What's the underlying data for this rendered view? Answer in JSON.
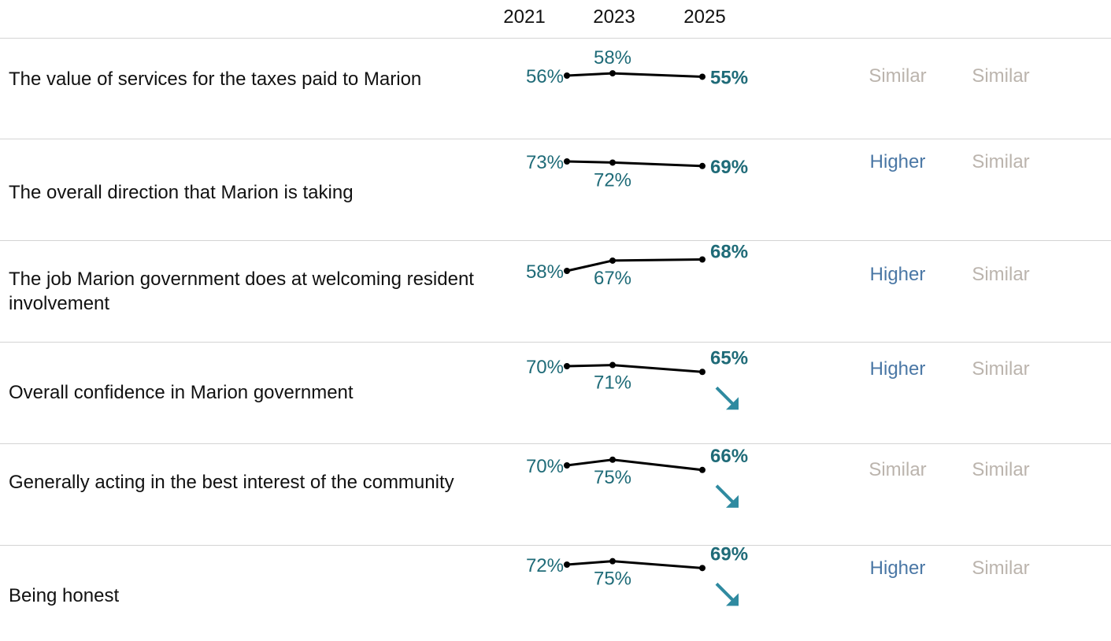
{
  "years": [
    "2021",
    "2023",
    "2025"
  ],
  "colors": {
    "value_text": "#1f6b78",
    "line": "#000000",
    "arrow": "#2f8aa0",
    "higher": "#4a77a5",
    "similar": "#bbb4ad",
    "divider": "#d4d4d4"
  },
  "chart_data": {
    "type": "line",
    "x": [
      2021,
      2023,
      2025
    ],
    "ylim": [
      50,
      80
    ],
    "rows": [
      {
        "label": "The value of services for the taxes paid to Marion",
        "values": [
          56,
          58,
          55
        ],
        "display": [
          "56%",
          "58%",
          "55%"
        ],
        "trend": "",
        "comparison_1": "Similar",
        "comparison_2": "Similar"
      },
      {
        "label": "The overall direction that Marion is taking",
        "values": [
          73,
          72,
          69
        ],
        "display": [
          "73%",
          "72%",
          "69%"
        ],
        "trend": "",
        "comparison_1": "Higher",
        "comparison_2": "Similar"
      },
      {
        "label": "The job Marion government does at welcoming resident involvement",
        "values": [
          58,
          67,
          68
        ],
        "display": [
          "58%",
          "67%",
          "68%"
        ],
        "trend": "",
        "comparison_1": "Higher",
        "comparison_2": "Similar"
      },
      {
        "label": "Overall confidence in Marion government",
        "values": [
          70,
          71,
          65
        ],
        "display": [
          "70%",
          "71%",
          "65%"
        ],
        "trend": "down",
        "comparison_1": "Higher",
        "comparison_2": "Similar"
      },
      {
        "label": "Generally acting in the best interest of the community",
        "values": [
          70,
          75,
          66
        ],
        "display": [
          "70%",
          "75%",
          "66%"
        ],
        "trend": "down",
        "comparison_1": "Similar",
        "comparison_2": "Similar"
      },
      {
        "label": "Being honest",
        "values": [
          72,
          75,
          69
        ],
        "display": [
          "72%",
          "75%",
          "69%"
        ],
        "trend": "down",
        "comparison_1": "Higher",
        "comparison_2": "Similar"
      }
    ]
  }
}
